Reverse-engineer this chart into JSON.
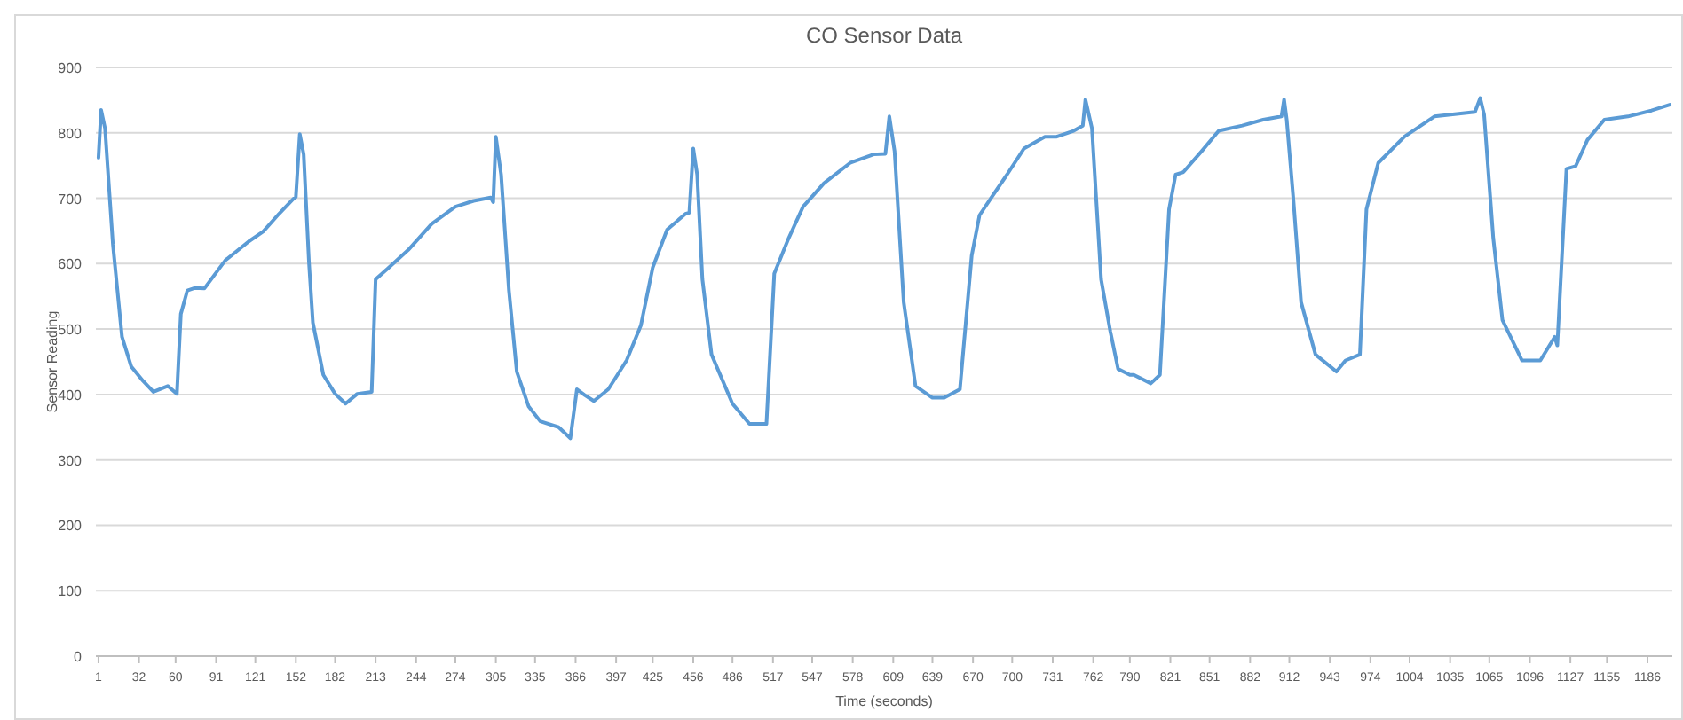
{
  "chart_data": {
    "type": "line",
    "title": "CO Sensor Data",
    "xlabel": "Time (seconds)",
    "ylabel": "Sensor Reading",
    "x": [
      1,
      3,
      6,
      12,
      19,
      26,
      35,
      43,
      54,
      61,
      64,
      69,
      75,
      82,
      98,
      116,
      127,
      139,
      150,
      152,
      155,
      158,
      162,
      165,
      173,
      182,
      190,
      199,
      210,
      213,
      222,
      238,
      256,
      274,
      288,
      301,
      303,
      305,
      309,
      315,
      321,
      330,
      339,
      353,
      362,
      367,
      373,
      380,
      391,
      405,
      416,
      425,
      436,
      450,
      453,
      456,
      459,
      463,
      470,
      486,
      499,
      512,
      518,
      529,
      540,
      556,
      576,
      594,
      603,
      606,
      610,
      617,
      626,
      639,
      648,
      660,
      669,
      675,
      684,
      696,
      709,
      725,
      734,
      747,
      754,
      756,
      761,
      768,
      775,
      781,
      790,
      793,
      806,
      813,
      820,
      825,
      831,
      845,
      858,
      876,
      892,
      906,
      908,
      910,
      915,
      921,
      932,
      948,
      955,
      966,
      971,
      980,
      1000,
      1023,
      1054,
      1058,
      1061,
      1068,
      1075,
      1090,
      1104,
      1115,
      1117,
      1124,
      1131,
      1140,
      1153,
      1171,
      1189,
      1203
    ],
    "series": [
      {
        "color": "#5b9bd5",
        "values": [
          762,
          835,
          807,
          630,
          488,
          443,
          421,
          404,
          413,
          401,
          523,
          559,
          563,
          562,
          605,
          634,
          649,
          676,
          699,
          702,
          798,
          767,
          603,
          510,
          430,
          401,
          386,
          401,
          404,
          576,
          592,
          621,
          661,
          687,
          696,
          701,
          694,
          794,
          736,
          559,
          435,
          382,
          359,
          350,
          333,
          408,
          399,
          390,
          408,
          452,
          506,
          594,
          652,
          676,
          678,
          776,
          736,
          576,
          461,
          386,
          355,
          355,
          585,
          639,
          687,
          723,
          754,
          767,
          768,
          825,
          772,
          541,
          413,
          395,
          395,
          408,
          612,
          674,
          701,
          736,
          776,
          794,
          794,
          803,
          811,
          851,
          807,
          576,
          497,
          439,
          430,
          430,
          417,
          430,
          683,
          736,
          740,
          772,
          803,
          811,
          820,
          825,
          851,
          820,
          701,
          541,
          461,
          435,
          452,
          461,
          683,
          754,
          794,
          825,
          832,
          853,
          828,
          639,
          514,
          452,
          452,
          488,
          475,
          745,
          749,
          789,
          820,
          825,
          834,
          843
        ]
      }
    ],
    "xlim": [
      -1,
      1205
    ],
    "xticks": [
      1,
      32,
      60,
      91,
      121,
      152,
      182,
      213,
      244,
      274,
      305,
      335,
      366,
      397,
      425,
      456,
      486,
      517,
      547,
      578,
      609,
      639,
      670,
      700,
      731,
      762,
      790,
      821,
      851,
      882,
      912,
      943,
      974,
      1004,
      1035,
      1065,
      1096,
      1127,
      1155,
      1186
    ],
    "ylim": [
      0,
      900
    ],
    "yticks": [
      0,
      100,
      200,
      300,
      400,
      500,
      600,
      700,
      800,
      900
    ],
    "grid": "y",
    "marker": "none",
    "line_style": "solid"
  }
}
